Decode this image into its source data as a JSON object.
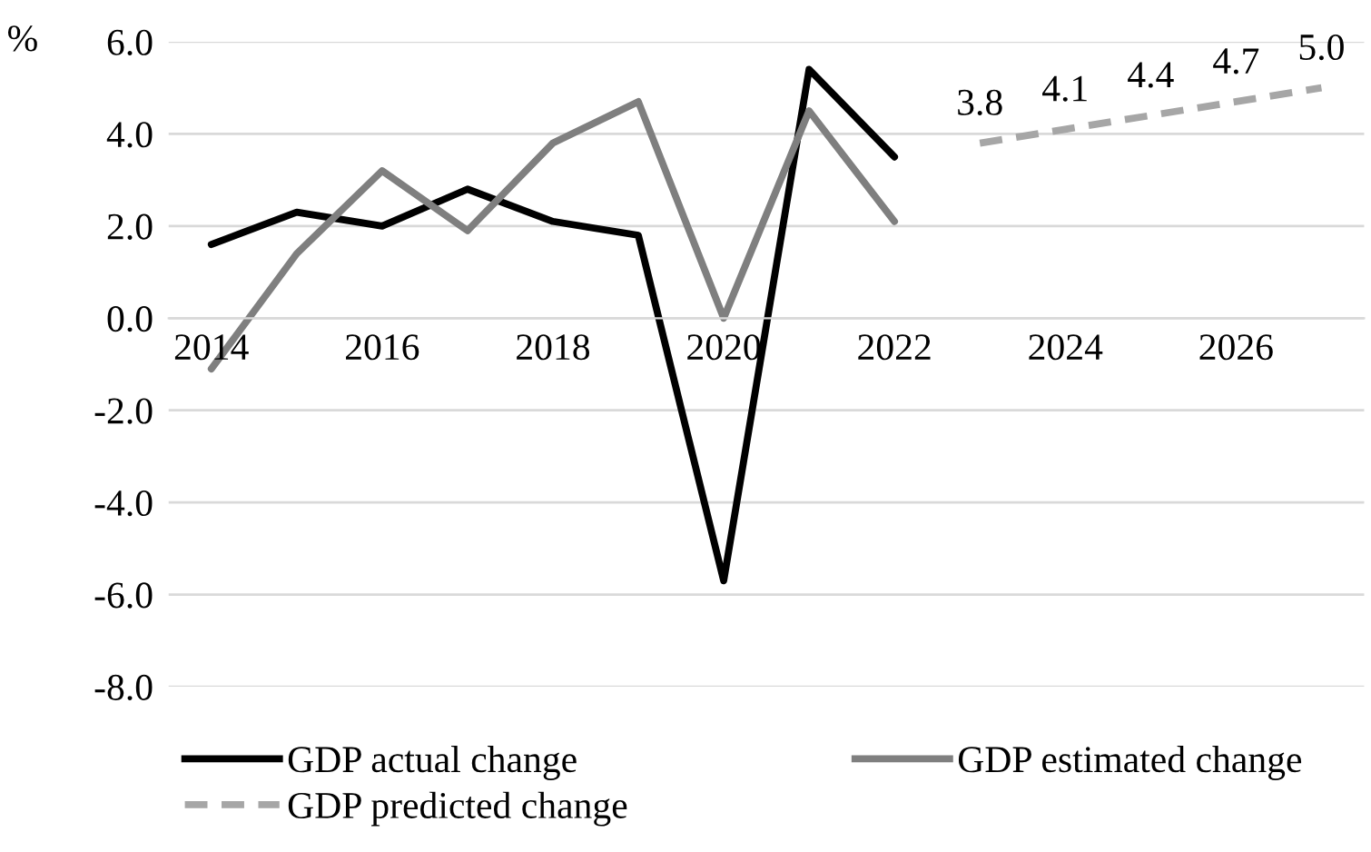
{
  "chart_data": {
    "type": "line",
    "ylabel": "%",
    "categories": [
      "2014",
      null,
      "2016",
      null,
      "2018",
      null,
      "2020",
      null,
      "2022",
      null,
      "2024",
      null,
      "2026",
      null
    ],
    "series": [
      {
        "name": "GDP actual change",
        "color": "#000000",
        "values": [
          1.6,
          2.3,
          2.0,
          2.8,
          2.1,
          1.8,
          -5.7,
          5.4,
          3.5,
          null,
          null,
          null,
          null,
          null
        ]
      },
      {
        "name": "GDP estimated change",
        "color": "#7f7f7f",
        "values": [
          -1.1,
          1.4,
          3.2,
          1.9,
          3.8,
          4.7,
          0.0,
          4.5,
          2.1,
          null,
          null,
          null,
          null,
          null
        ]
      },
      {
        "name": "GDP predicted change",
        "color": "#a6a6a6",
        "line_style": "dashed",
        "values": [
          null,
          null,
          null,
          null,
          null,
          null,
          null,
          null,
          null,
          3.8,
          4.1,
          4.4,
          4.7,
          5.0
        ],
        "value_labels": [
          null,
          null,
          null,
          null,
          null,
          null,
          null,
          null,
          null,
          "3.8",
          "4.1",
          "4.4",
          "4.7",
          "5.0"
        ]
      }
    ],
    "ylim": [
      -8,
      6
    ],
    "yticks": [
      {
        "value": -8,
        "label": "-8.0"
      },
      {
        "value": -6,
        "label": "-6.0"
      },
      {
        "value": -4,
        "label": "-4.0"
      },
      {
        "value": -2,
        "label": "-2.0"
      },
      {
        "value": 0,
        "label": "0.0"
      },
      {
        "value": 2,
        "label": "2.0"
      },
      {
        "value": 4,
        "label": "4.0"
      },
      {
        "value": 6,
        "label": "6.0"
      }
    ],
    "grid": "y",
    "legend": "bottom",
    "marker": "none"
  }
}
